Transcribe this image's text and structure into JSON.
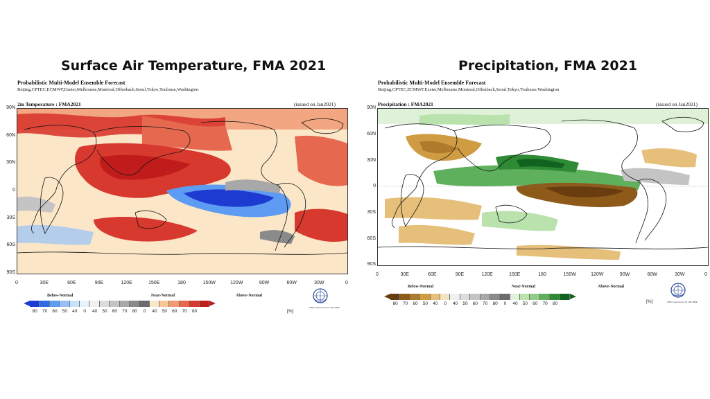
{
  "colors": {
    "below_normal_temp": [
      "#1d3bd1",
      "#2f6ae6",
      "#5e9bf2",
      "#94c2f8",
      "#c6e2fb",
      "#e6f3fd"
    ],
    "near_normal": [
      "#f0f0f0",
      "#dcdcdc",
      "#c4c4c4",
      "#a8a8a8",
      "#8a8a8a",
      "#6c6c6c"
    ],
    "above_normal_temp": [
      "#fbe6c8",
      "#f7c79a",
      "#f09a74",
      "#e6694f",
      "#d8392e",
      "#c01c1c"
    ],
    "below_normal_prec": [
      "#6a3d10",
      "#8e5a1a",
      "#b07a2c",
      "#cf9c44",
      "#e6c07a",
      "#f5e3bf"
    ],
    "above_normal_prec": [
      "#dff1d8",
      "#b9e2ad",
      "#8fcd84",
      "#5fb05c",
      "#2f8a36",
      "#11621f"
    ]
  },
  "left": {
    "title": "Surface Air Temperature, FMA 2021",
    "header_line1": "Probabilistic Multi-Model Ensemble Forecast",
    "header_line2": "Beijing,CPTEC,ECMWF,Exeter,Melbourne,Montreal,Offenbach,Seoul,Tokyo,Toulouse,Washington",
    "variable_label": "2m Temperature : FMA2021",
    "issued": "(issued on Jan2021)",
    "lat_labels": [
      "90N",
      "60N",
      "30N",
      "0",
      "30S",
      "60S",
      "90S"
    ],
    "lon_labels": [
      "0",
      "30E",
      "60E",
      "90E",
      "120E",
      "150E",
      "180",
      "150W",
      "120W",
      "90W",
      "60W",
      "30W",
      "0"
    ],
    "cat_below": "Below-Normal",
    "cat_near": "Near-Normal",
    "cat_above": "Above-Normal",
    "scale_ticks": [
      "80",
      "70",
      "60",
      "50",
      "40",
      "0",
      "40",
      "50",
      "60",
      "70",
      "80",
      "0",
      "40",
      "50",
      "60",
      "70",
      "80"
    ],
    "unit": "[%]"
  },
  "right": {
    "title": "Precipitation, FMA 2021",
    "header_line1": "Probabilistic Multi-Model Ensemble Forecast",
    "header_line2": "Beijing,CPTEC,ECMWF,Exeter,Melbourne,Montreal,Offenbach,Seoul,Tokyo,Toulouse,Washington",
    "variable_label": "Precipitation : FMA2021",
    "issued": "(issued on Jan2021)",
    "lat_labels": [
      "90N",
      "60N",
      "30N",
      "0",
      "30S",
      "60S",
      "90S"
    ],
    "lon_labels": [
      "0",
      "30E",
      "60E",
      "90E",
      "120E",
      "150E",
      "180",
      "150W",
      "120W",
      "90W",
      "60W",
      "30W",
      "0"
    ],
    "cat_below": "Below-Normal",
    "cat_near": "Near-Normal",
    "cat_above": "Above-Normal",
    "scale_ticks": [
      "80",
      "70",
      "60",
      "50",
      "40",
      "0",
      "40",
      "50",
      "60",
      "70",
      "80",
      "0",
      "40",
      "50",
      "60",
      "70",
      "80"
    ],
    "unit": "[%]"
  },
  "logo_text": "WMO Lead Centre for LRF-MME"
}
